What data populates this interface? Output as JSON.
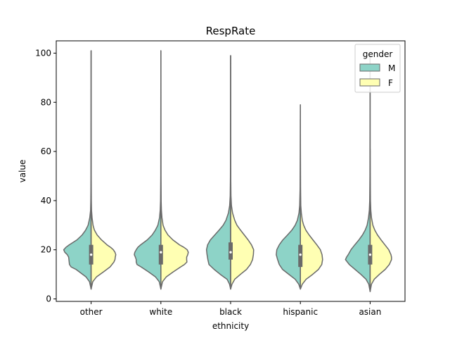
{
  "chart_data": {
    "type": "violin",
    "title": "RespRate",
    "xlabel": "ethnicity",
    "ylabel": "value",
    "ylim": [
      -1,
      105
    ],
    "yticks": [
      0,
      20,
      40,
      60,
      80,
      100
    ],
    "categories": [
      "other",
      "white",
      "black",
      "hispanic",
      "asian"
    ],
    "split": true,
    "hue": {
      "title": "gender",
      "levels": [
        {
          "name": "M",
          "color": "#8dd3c7"
        },
        {
          "name": "F",
          "color": "#ffffb3"
        }
      ]
    },
    "legend_position": "top-right",
    "line_color": "#6a6a6a",
    "median_color": "#ffffff",
    "groups": [
      {
        "category": "other",
        "range": [
          4,
          101
        ],
        "box": {
          "q1": 14,
          "median": 18,
          "q3": 22
        },
        "M": [
          [
            4,
            0
          ],
          [
            7,
            0.06
          ],
          [
            9,
            0.19
          ],
          [
            11,
            0.43
          ],
          [
            12,
            0.55
          ],
          [
            13,
            0.73
          ],
          [
            14,
            0.79
          ],
          [
            15,
            0.8
          ],
          [
            16,
            0.81
          ],
          [
            17,
            0.82
          ],
          [
            18,
            0.87
          ],
          [
            19,
            0.96
          ],
          [
            20,
            1.0
          ],
          [
            21,
            0.92
          ],
          [
            22,
            0.8
          ],
          [
            23,
            0.66
          ],
          [
            24,
            0.52
          ],
          [
            26,
            0.33
          ],
          [
            28,
            0.2
          ],
          [
            30,
            0.11
          ],
          [
            33,
            0.05
          ],
          [
            36,
            0.02
          ],
          [
            40,
            0.012
          ],
          [
            50,
            0.005
          ],
          [
            70,
            0.003
          ],
          [
            101,
            0
          ]
        ],
        "F": [
          [
            4,
            0
          ],
          [
            7,
            0.06
          ],
          [
            9,
            0.2
          ],
          [
            11,
            0.45
          ],
          [
            13,
            0.69
          ],
          [
            15,
            0.83
          ],
          [
            16,
            0.87
          ],
          [
            17,
            0.88
          ],
          [
            18,
            0.9
          ],
          [
            19,
            0.87
          ],
          [
            20,
            0.81
          ],
          [
            21,
            0.71
          ],
          [
            22,
            0.58
          ],
          [
            24,
            0.38
          ],
          [
            26,
            0.22
          ],
          [
            28,
            0.12
          ],
          [
            30,
            0.07
          ],
          [
            33,
            0.035
          ],
          [
            36,
            0.015
          ],
          [
            40,
            0.008
          ],
          [
            50,
            0.004
          ],
          [
            70,
            0.002
          ],
          [
            101,
            0
          ]
        ]
      },
      {
        "category": "white",
        "range": [
          4,
          101
        ],
        "box": {
          "q1": 14,
          "median": 19,
          "q3": 22
        },
        "M": [
          [
            4,
            0
          ],
          [
            7,
            0.06
          ],
          [
            9,
            0.2
          ],
          [
            11,
            0.45
          ],
          [
            13,
            0.72
          ],
          [
            14,
            0.87
          ],
          [
            15,
            0.9
          ],
          [
            16,
            0.9
          ],
          [
            17,
            0.93
          ],
          [
            18,
            0.97
          ],
          [
            19,
            0.95
          ],
          [
            20,
            0.9
          ],
          [
            21,
            0.84
          ],
          [
            22,
            0.74
          ],
          [
            23,
            0.62
          ],
          [
            24,
            0.5
          ],
          [
            26,
            0.32
          ],
          [
            28,
            0.2
          ],
          [
            30,
            0.11
          ],
          [
            33,
            0.05
          ],
          [
            36,
            0.025
          ],
          [
            40,
            0.012
          ],
          [
            50,
            0.005
          ],
          [
            70,
            0.003
          ],
          [
            101,
            0
          ]
        ],
        "F": [
          [
            4,
            0
          ],
          [
            7,
            0.06
          ],
          [
            9,
            0.2
          ],
          [
            11,
            0.45
          ],
          [
            13,
            0.72
          ],
          [
            14,
            0.86
          ],
          [
            15,
            0.95
          ],
          [
            16,
            0.94
          ],
          [
            17,
            0.94
          ],
          [
            18,
            0.98
          ],
          [
            19,
            1.0
          ],
          [
            20,
            0.96
          ],
          [
            21,
            0.84
          ],
          [
            22,
            0.68
          ],
          [
            24,
            0.44
          ],
          [
            26,
            0.26
          ],
          [
            28,
            0.15
          ],
          [
            30,
            0.08
          ],
          [
            33,
            0.04
          ],
          [
            36,
            0.02
          ],
          [
            40,
            0.01
          ],
          [
            50,
            0.004
          ],
          [
            70,
            0.002
          ],
          [
            101,
            0
          ]
        ]
      },
      {
        "category": "black",
        "range": [
          4,
          99
        ],
        "box": {
          "q1": 16,
          "median": 19,
          "q3": 23
        },
        "M": [
          [
            4,
            0
          ],
          [
            6,
            0.04
          ],
          [
            8,
            0.13
          ],
          [
            10,
            0.38
          ],
          [
            12,
            0.6
          ],
          [
            14,
            0.79
          ],
          [
            16,
            0.83
          ],
          [
            18,
            0.86
          ],
          [
            20,
            0.88
          ],
          [
            22,
            0.84
          ],
          [
            24,
            0.74
          ],
          [
            26,
            0.58
          ],
          [
            28,
            0.42
          ],
          [
            30,
            0.27
          ],
          [
            32,
            0.17
          ],
          [
            35,
            0.08
          ],
          [
            38,
            0.035
          ],
          [
            42,
            0.015
          ],
          [
            50,
            0.007
          ],
          [
            70,
            0.003
          ],
          [
            99,
            0
          ]
        ],
        "F": [
          [
            4,
            0
          ],
          [
            6,
            0.05
          ],
          [
            8,
            0.15
          ],
          [
            10,
            0.36
          ],
          [
            12,
            0.58
          ],
          [
            14,
            0.72
          ],
          [
            16,
            0.8
          ],
          [
            18,
            0.83
          ],
          [
            20,
            0.84
          ],
          [
            22,
            0.76
          ],
          [
            24,
            0.64
          ],
          [
            26,
            0.5
          ],
          [
            28,
            0.36
          ],
          [
            30,
            0.23
          ],
          [
            32,
            0.15
          ],
          [
            35,
            0.07
          ],
          [
            38,
            0.03
          ],
          [
            42,
            0.012
          ],
          [
            50,
            0.005
          ],
          [
            70,
            0.002
          ],
          [
            99,
            0
          ]
        ]
      },
      {
        "category": "hispanic",
        "range": [
          4,
          79
        ],
        "box": {
          "q1": 13,
          "median": 18,
          "q3": 22
        },
        "M": [
          [
            4,
            0
          ],
          [
            6,
            0.06
          ],
          [
            8,
            0.19
          ],
          [
            10,
            0.42
          ],
          [
            12,
            0.65
          ],
          [
            14,
            0.77
          ],
          [
            16,
            0.83
          ],
          [
            18,
            0.88
          ],
          [
            20,
            0.86
          ],
          [
            22,
            0.77
          ],
          [
            24,
            0.64
          ],
          [
            26,
            0.47
          ],
          [
            28,
            0.31
          ],
          [
            30,
            0.19
          ],
          [
            32,
            0.11
          ],
          [
            35,
            0.05
          ],
          [
            38,
            0.025
          ],
          [
            45,
            0.01
          ],
          [
            60,
            0.004
          ],
          [
            79,
            0
          ]
        ],
        "F": [
          [
            4,
            0
          ],
          [
            6,
            0.07
          ],
          [
            8,
            0.21
          ],
          [
            10,
            0.45
          ],
          [
            12,
            0.66
          ],
          [
            14,
            0.78
          ],
          [
            16,
            0.81
          ],
          [
            18,
            0.79
          ],
          [
            20,
            0.73
          ],
          [
            22,
            0.6
          ],
          [
            24,
            0.46
          ],
          [
            26,
            0.32
          ],
          [
            28,
            0.2
          ],
          [
            30,
            0.12
          ],
          [
            32,
            0.07
          ],
          [
            35,
            0.035
          ],
          [
            38,
            0.015
          ],
          [
            45,
            0.007
          ],
          [
            60,
            0.003
          ],
          [
            73,
            0
          ]
        ]
      },
      {
        "category": "asian",
        "range": [
          3,
          100
        ],
        "box": {
          "q1": 14,
          "median": 18,
          "q3": 22
        },
        "M": [
          [
            3,
            0
          ],
          [
            6,
            0.05
          ],
          [
            8,
            0.15
          ],
          [
            10,
            0.34
          ],
          [
            12,
            0.55
          ],
          [
            14,
            0.76
          ],
          [
            16,
            0.9
          ],
          [
            17,
            0.86
          ],
          [
            18,
            0.8
          ],
          [
            20,
            0.7
          ],
          [
            22,
            0.56
          ],
          [
            24,
            0.41
          ],
          [
            26,
            0.28
          ],
          [
            28,
            0.18
          ],
          [
            30,
            0.11
          ],
          [
            33,
            0.06
          ],
          [
            36,
            0.03
          ],
          [
            40,
            0.015
          ],
          [
            50,
            0.007
          ],
          [
            70,
            0.004
          ],
          [
            100,
            0
          ]
        ],
        "F": [
          [
            3,
            0
          ],
          [
            6,
            0.05
          ],
          [
            8,
            0.15
          ],
          [
            10,
            0.34
          ],
          [
            12,
            0.55
          ],
          [
            14,
            0.7
          ],
          [
            16,
            0.78
          ],
          [
            17,
            0.78
          ],
          [
            18,
            0.76
          ],
          [
            20,
            0.68
          ],
          [
            22,
            0.54
          ],
          [
            24,
            0.4
          ],
          [
            26,
            0.27
          ],
          [
            28,
            0.17
          ],
          [
            30,
            0.1
          ],
          [
            33,
            0.05
          ],
          [
            36,
            0.025
          ],
          [
            40,
            0.012
          ],
          [
            50,
            0.005
          ],
          [
            61,
            0
          ]
        ]
      }
    ]
  }
}
